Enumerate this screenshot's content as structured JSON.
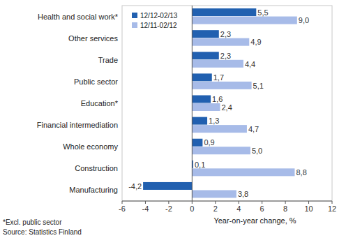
{
  "chart_data": {
    "type": "bar",
    "orientation": "horizontal",
    "categories": [
      "Health and social work*",
      "Other services",
      "Trade",
      "Public sector",
      "Education*",
      "Financial intermediation",
      "Whole economy",
      "Construction",
      "Manufacturing"
    ],
    "series": [
      {
        "name": "12/12-02/13",
        "color": "#2160b0",
        "values": [
          5.5,
          2.3,
          2.3,
          1.7,
          1.6,
          1.3,
          0.9,
          0.1,
          -4.2
        ],
        "value_labels": [
          "5,5",
          "2,3",
          "2,3",
          "1,7",
          "1,6",
          "1,3",
          "0,9",
          "0,1",
          "-4,2"
        ]
      },
      {
        "name": "12/11-02/12",
        "color": "#a7bbe8",
        "values": [
          9.0,
          4.9,
          4.4,
          5.1,
          2.4,
          4.7,
          5.0,
          8.8,
          3.8
        ],
        "value_labels": [
          "9,0",
          "4,9",
          "4,4",
          "5,1",
          "2,4",
          "4,7",
          "5,0",
          "8,8",
          "3,8"
        ]
      }
    ],
    "xlim": [
      -6,
      12
    ],
    "xticks": [
      -6,
      -4,
      -2,
      0,
      2,
      4,
      6,
      8,
      10,
      12
    ],
    "x_label": "Year-on-year change, %",
    "notes": [
      "*Excl. public sector",
      "Source: Statistics Finland"
    ],
    "legend": "upper left",
    "data_labels": true,
    "grid": false
  }
}
